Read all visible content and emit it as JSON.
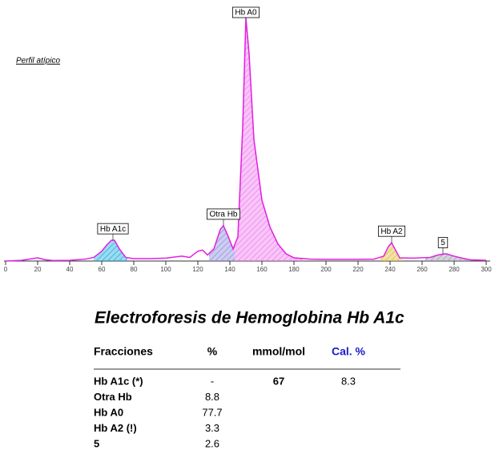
{
  "chart_data": {
    "type": "electropherogram",
    "annotation": "Perfil atípico",
    "x": [
      0,
      10,
      20,
      25,
      30,
      40,
      50,
      55,
      60,
      63,
      66,
      68,
      71,
      75,
      80,
      90,
      100,
      110,
      115,
      120,
      123,
      126,
      130,
      134,
      136,
      139,
      142,
      145,
      148,
      150,
      152,
      155,
      160,
      165,
      170,
      175,
      180,
      190,
      200,
      220,
      230,
      236,
      239,
      241,
      243,
      246,
      255,
      265,
      270,
      275,
      280,
      285,
      290,
      300
    ],
    "values": [
      0,
      0.3,
      1.3,
      0.5,
      0.2,
      0.3,
      0.8,
      1.5,
      4,
      6.5,
      8.5,
      8.5,
      5,
      1.5,
      1,
      1,
      1.2,
      2,
      1.5,
      4,
      4.5,
      2.5,
      5,
      13,
      14.5,
      10,
      5,
      10,
      55,
      100,
      85,
      50,
      25,
      14,
      7,
      3,
      1.3,
      0.8,
      0.7,
      0.7,
      0.8,
      2,
      6,
      7.5,
      5,
      1.3,
      1.2,
      1.5,
      2.5,
      3,
      2,
      1.2,
      0.5,
      0.3
    ],
    "color": "#e020e0",
    "xlim": [
      0,
      300
    ],
    "ylim": [
      0,
      100
    ],
    "xticks": [
      0,
      20,
      40,
      60,
      80,
      100,
      120,
      140,
      160,
      180,
      200,
      220,
      240,
      260,
      280,
      300
    ],
    "peaks": [
      {
        "label": "Hb A1c",
        "x": 67,
        "range": [
          55,
          76
        ],
        "color": "#20b0e0"
      },
      {
        "label": "Otra Hb",
        "x": 136,
        "range": [
          127,
          143
        ],
        "color": "#9090e0"
      },
      {
        "label": "Hb A0",
        "x": 150,
        "range": [
          143,
          185
        ],
        "color": "#f080f0"
      },
      {
        "label": "Hb A2",
        "x": 241,
        "range": [
          234,
          248
        ],
        "color": "#e0c040"
      },
      {
        "label": "5",
        "x": 273,
        "range": [
          262,
          290
        ],
        "color": "#a0a0b0"
      }
    ]
  },
  "table": {
    "title": "Electroforesis de Hemoglobina Hb A1c",
    "headers": [
      "Fracciones",
      "%",
      "mmol/mol",
      "Cal. %"
    ],
    "rows": [
      [
        "Hb A1c (*)",
        "-",
        "67",
        "8.3"
      ],
      [
        "Otra Hb",
        "8.8",
        "",
        ""
      ],
      [
        "Hb A0",
        "77.7",
        "",
        ""
      ],
      [
        "Hb A2 (!)",
        "3.3",
        "",
        ""
      ],
      [
        "5",
        "2.6",
        "",
        ""
      ]
    ]
  }
}
